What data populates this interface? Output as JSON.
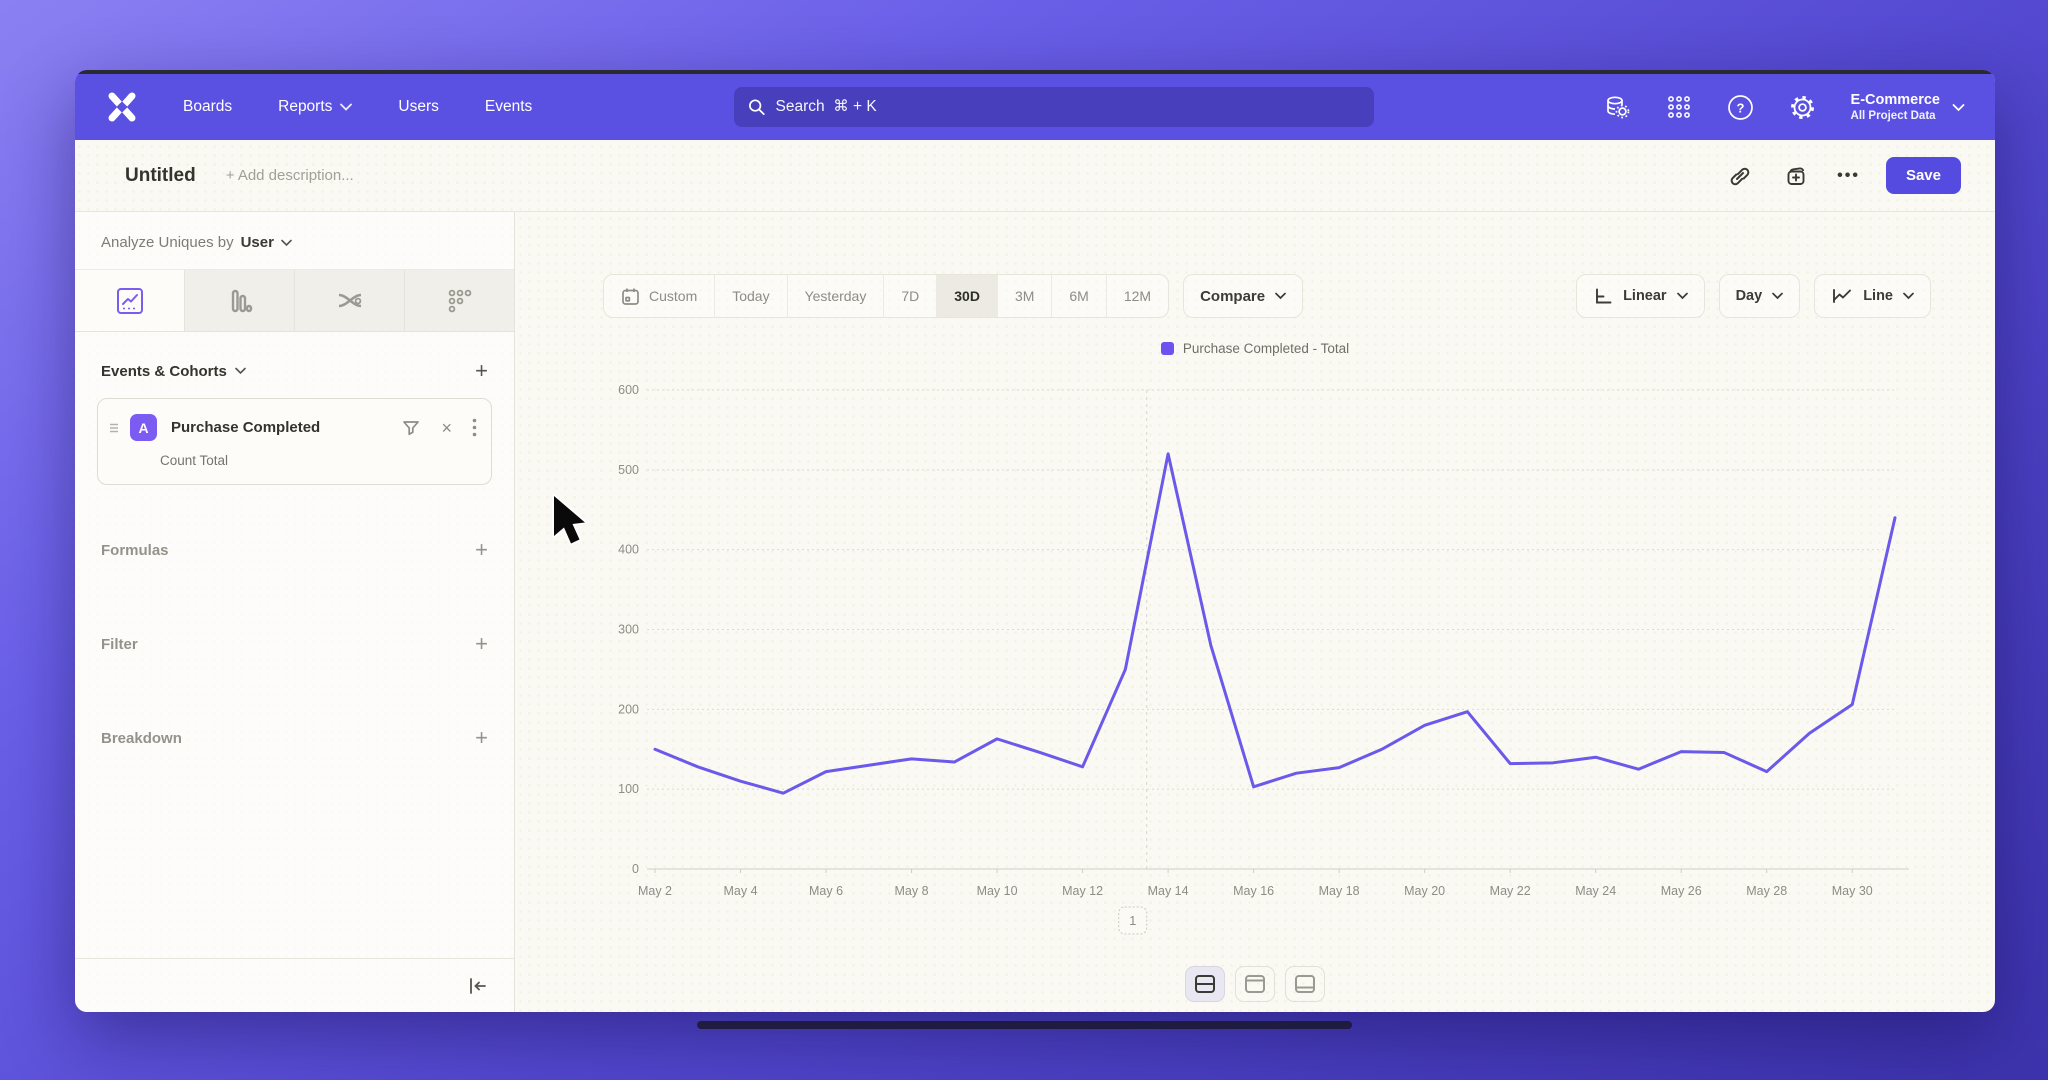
{
  "nav": {
    "items": [
      {
        "label": "Boards"
      },
      {
        "label": "Reports"
      },
      {
        "label": "Users"
      },
      {
        "label": "Events"
      }
    ],
    "search_placeholder": "Search  ⌘ + K",
    "project_name": "E-Commerce",
    "project_subtitle": "All Project Data"
  },
  "header": {
    "title": "Untitled",
    "description_placeholder": "+ Add description...",
    "more_label": "•••",
    "save_label": "Save"
  },
  "sidebar": {
    "analyze_prefix": "Analyze Uniques by",
    "analyze_value": "User",
    "events_section_title": "Events & Cohorts",
    "add_label": "+",
    "event_card": {
      "badge": "A",
      "title": "Purchase Completed",
      "metric": "Count Total",
      "remove_label": "×",
      "kebab_label": "⋮"
    },
    "groups": [
      {
        "label": "Formulas"
      },
      {
        "label": "Filter"
      },
      {
        "label": "Breakdown"
      }
    ]
  },
  "toolbar": {
    "ranges": [
      {
        "label": "Custom"
      },
      {
        "label": "Today"
      },
      {
        "label": "Yesterday"
      },
      {
        "label": "7D"
      },
      {
        "label": "30D"
      },
      {
        "label": "3M"
      },
      {
        "label": "6M"
      },
      {
        "label": "12M"
      }
    ],
    "active_range": "30D",
    "compare_label": "Compare",
    "scale_label": "Linear",
    "interval_label": "Day",
    "chart_type_label": "Line"
  },
  "chart_data": {
    "type": "line",
    "title": "",
    "legend_position": "top-center",
    "grid": "horizontal-dotted",
    "ylim": [
      0,
      600
    ],
    "yticks": [
      600,
      500,
      400,
      300,
      200,
      100,
      0
    ],
    "xticks": [
      "May 2",
      "May 4",
      "May 6",
      "May 8",
      "May 10",
      "May 12",
      "May 14",
      "May 16",
      "May 18",
      "May 20",
      "May 22",
      "May 24",
      "May 26",
      "May 28",
      "May 30"
    ],
    "categories": [
      "May 2",
      "May 3",
      "May 4",
      "May 5",
      "May 6",
      "May 7",
      "May 8",
      "May 9",
      "May 10",
      "May 11",
      "May 12",
      "May 13",
      "May 14",
      "May 15",
      "May 16",
      "May 17",
      "May 18",
      "May 19",
      "May 20",
      "May 21",
      "May 22",
      "May 23",
      "May 24",
      "May 25",
      "May 26",
      "May 27",
      "May 28",
      "May 29",
      "May 30",
      "May 31"
    ],
    "series": [
      {
        "name": "Purchase Completed - Total",
        "color": "#6a59ea",
        "values": [
          150,
          128,
          110,
          95,
          122,
          130,
          138,
          134,
          163,
          146,
          128,
          250,
          520,
          280,
          103,
          120,
          127,
          150,
          180,
          197,
          132,
          133,
          140,
          125,
          147,
          146,
          122,
          170,
          206,
          440
        ]
      }
    ],
    "annotation": {
      "label": "1",
      "x_index": 11.5
    }
  },
  "footer_controls": {
    "layouts": [
      {
        "name": "split-horizontal",
        "active": true
      },
      {
        "name": "panel-top",
        "active": false
      },
      {
        "name": "panel-bottom",
        "active": false
      }
    ]
  },
  "colors": {
    "accent": "#5a50e2",
    "line": "#6a59ea",
    "event_badge": "#7c5bf2",
    "background": "#faf9f3"
  }
}
